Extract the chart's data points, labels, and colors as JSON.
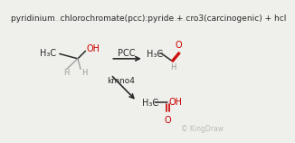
{
  "background_color": "#efefeb",
  "title_text": "pyridinium  chlorochromate(pcc):pyride + cro3(carcinogenic) + hcl",
  "title_fontsize": 6.5,
  "title_color": "#2a2a2a",
  "watermark": "© KingDraw",
  "watermark_color": "#bbbbbb",
  "watermark_fontsize": 5.5,
  "red_color": "#cc0000",
  "dark_color": "#2a2a2a",
  "gray_color": "#999999",
  "lw": 1.1
}
